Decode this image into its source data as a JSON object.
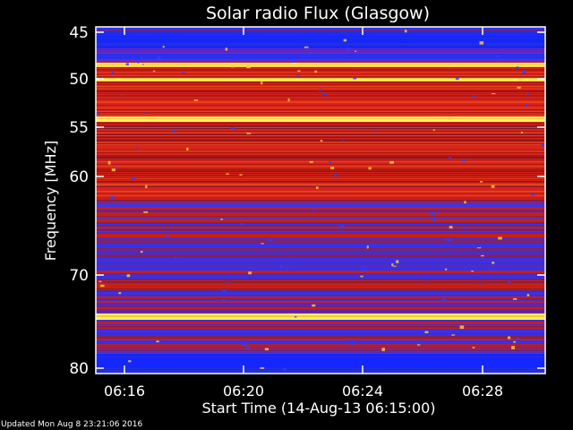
{
  "chart_data": {
    "type": "heatmap",
    "title": "Solar radio Flux (Glasgow)",
    "ylabel": "Frequency [MHz]",
    "xlabel": "Start Time (14-Aug-13 06:15:00)",
    "y_ticks": [
      "45",
      "50",
      "55",
      "60",
      "70",
      "80"
    ],
    "x_ticks": [
      "06:16",
      "06:20",
      "06:24",
      "06:28"
    ],
    "colors": {
      "background": "#000000",
      "axes": "#ffffff",
      "text": "#ffffff",
      "low": "#1a2bff",
      "mid": "#c81e14",
      "high": "#ffe040"
    }
  },
  "footer": {
    "updated": "Updated Mon Aug  8 23:21:06 2016"
  }
}
